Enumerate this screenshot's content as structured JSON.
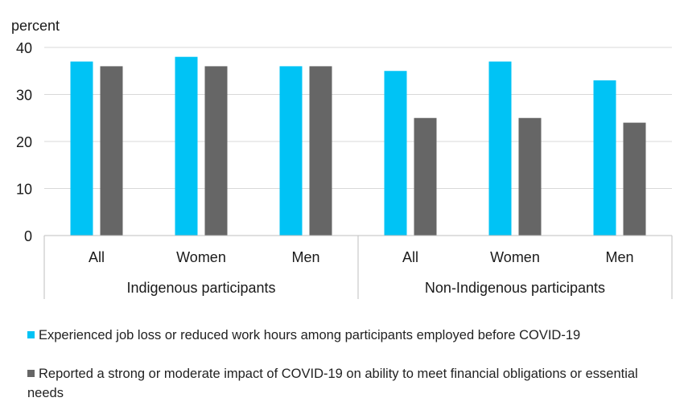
{
  "chart_data": {
    "type": "bar",
    "ylabel": "percent",
    "ylim": [
      0,
      40
    ],
    "yticks": [
      0,
      10,
      20,
      30,
      40
    ],
    "grid": true,
    "legend_position": "bottom",
    "groups": [
      {
        "label": "Indigenous participants",
        "categories": [
          "All",
          "Women",
          "Men"
        ]
      },
      {
        "label": "Non-Indigenous participants",
        "categories": [
          "All",
          "Women",
          "Men"
        ]
      }
    ],
    "series": [
      {
        "name": "Experienced job loss or reduced work hours among participants employed before COVID-19",
        "color": "#00c3f5",
        "values": [
          37,
          38,
          36,
          35,
          37,
          33
        ]
      },
      {
        "name": "Reported  a strong or moderate impact of COVID-19 on ability to meet financial obligations or essential needs",
        "color": "#666666",
        "values": [
          36,
          36,
          36,
          25,
          25,
          24
        ]
      }
    ]
  }
}
